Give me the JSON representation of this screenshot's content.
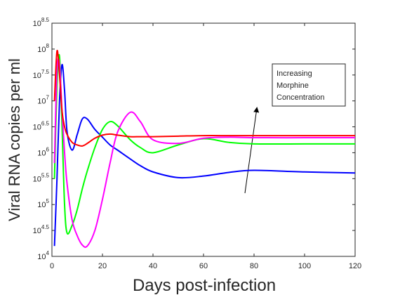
{
  "chart_data": {
    "type": "line",
    "xlabel": "Days post-infection",
    "ylabel": "Viral RNA copies per ml",
    "annotation": [
      "Increasing",
      "Morphine",
      "Concentration"
    ],
    "yscale": "log",
    "xlim": [
      0,
      120
    ],
    "xticks": [
      0,
      20,
      40,
      60,
      80,
      100,
      120
    ],
    "ylim": [
      10000,
      316227766
    ],
    "yticks": [
      {
        "value": 10000,
        "label": "10^4"
      },
      {
        "value": 31622.78,
        "label": "10^4.5"
      },
      {
        "value": 100000,
        "label": "10^5"
      },
      {
        "value": 316227.8,
        "label": "10^5.5"
      },
      {
        "value": 1000000,
        "label": "10^6"
      },
      {
        "value": 3162278,
        "label": "10^6.5"
      },
      {
        "value": 10000000,
        "label": "10^7"
      },
      {
        "value": 31622777,
        "label": "10^7.5"
      },
      {
        "value": 100000000,
        "label": "10^8"
      },
      {
        "value": 316227766,
        "label": "10^8.5"
      }
    ],
    "x": [
      1,
      2,
      3,
      4,
      5,
      6,
      8,
      10,
      12,
      14,
      17,
      20,
      23,
      26,
      31,
      35,
      40,
      50,
      60,
      70,
      80,
      100,
      120
    ],
    "series": [
      {
        "color": "#0000ff",
        "values": [
          15850,
          316200,
          10000000,
          50120000,
          15850000,
          2512000,
          1122000,
          2239000,
          4467000,
          4467000,
          2818000,
          1995000,
          1413000,
          1122000,
          758600,
          562300,
          426600,
          331100,
          354800,
          416900,
          457100,
          426600,
          407400
        ]
      },
      {
        "color": "#00ff00",
        "values": [
          316200,
          19950000,
          72440000,
          3162000,
          100000,
          28180,
          39810,
          79430,
          199500,
          446700,
          1259000,
          2818000,
          3981000,
          3311000,
          1778000,
          1259000,
          1000000,
          1413000,
          1862000,
          1585000,
          1479000,
          1479000,
          1479000
        ]
      },
      {
        "color": "#ff00ff",
        "values": [
          631000,
          39810000,
          50120000,
          6310000,
          1000000,
          251200,
          50120,
          25120,
          16600,
          15850,
          31620,
          125900,
          631000,
          2512000,
          6026000,
          3981000,
          1778000,
          1514000,
          1905000,
          1995000,
          1950000,
          1950000,
          1950000
        ]
      },
      {
        "color": "#ff0000",
        "values": [
          10000000,
          91200000,
          31620000,
          6310000,
          3162000,
          2239000,
          1585000,
          1413000,
          1349000,
          1514000,
          1905000,
          2188000,
          2291000,
          2188000,
          2042000,
          2042000,
          2042000,
          2089000,
          2138000,
          2138000,
          2138000,
          2138000,
          2138000
        ]
      }
    ]
  }
}
